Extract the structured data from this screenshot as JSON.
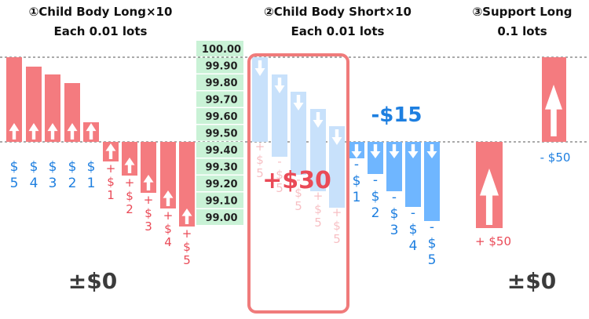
{
  "headers": [
    {
      "line1": "①Child Body Long×10",
      "line2": "Each 0.01 lots"
    },
    {
      "line1": "②Child Body Short×10",
      "line2": "Each 0.01 lots"
    },
    {
      "line1": "③Support Long",
      "line2": "0.1 lots"
    }
  ],
  "price_ladder": [
    "100.00",
    "99.90",
    "99.80",
    "99.70",
    "99.60",
    "99.50",
    "99.40",
    "99.30",
    "99.20",
    "99.10",
    "99.00"
  ],
  "section1": {
    "result": "±$0",
    "labels_up": [
      "$ 5",
      "$ 4",
      "$ 3",
      "$ 2",
      "$ 1"
    ],
    "labels_down": [
      "+ $ 1",
      "+ $ 2",
      "+ $ 3",
      "+ $ 4",
      "+ $ 5"
    ]
  },
  "section2": {
    "result": "+$30",
    "faded_labels": [
      "+ $ 5",
      "- $ 5",
      "- $ 5",
      "+ $ 5",
      "+ $ 5"
    ],
    "summary": "-$15",
    "labels_blue": [
      "- $ 1",
      "- $ 2",
      "- $ 3",
      "- $ 4",
      "- $ 5"
    ]
  },
  "section3": {
    "top_label": "- $50",
    "bottom_label": "+ $50",
    "result": "±$0"
  },
  "colors": {
    "red": "#f47b7f",
    "red_text": "#ea4a57",
    "blue_text": "#1e7fe0",
    "light_blue": "#c8e1fb",
    "blue": "#6fb6ff",
    "green": "#c9f2d6",
    "highlight": "#f07b7b",
    "result_gray": "#3b3b3b"
  }
}
